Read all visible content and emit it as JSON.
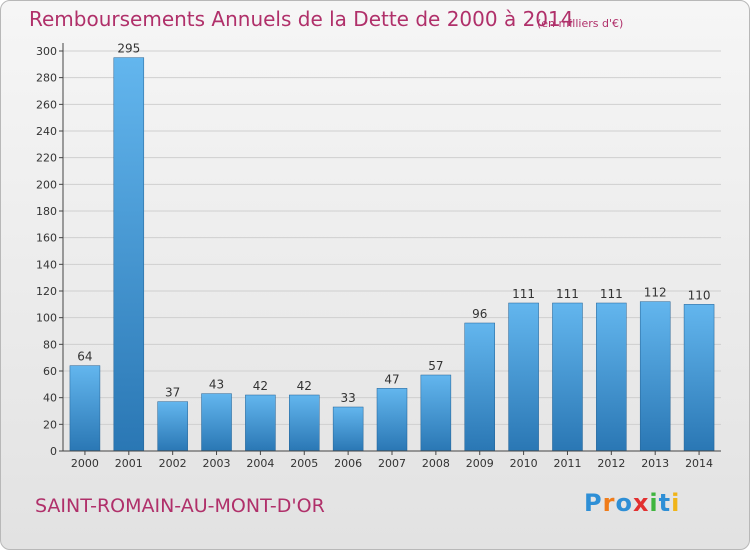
{
  "title": "Remboursements Annuels de la Dette de 2000 à 2014",
  "unit": "(en milliers d'€)",
  "commune": "SAINT-ROMAIN-AU-MONT-D'OR",
  "logo": "Proxiti",
  "colors": {
    "title": "#b0306a",
    "bar_top": "#63b6ee",
    "bar_bottom": "#2a77b4",
    "logo_letters": [
      "#2e8fd6",
      "#f07c1a",
      "#2e8fd6",
      "#e23030",
      "#3fb53f",
      "#2e8fd6",
      "#f0b418"
    ]
  },
  "chart_data": {
    "type": "bar",
    "title": "Remboursements Annuels de la Dette de 2000 à 2014",
    "xlabel": "",
    "ylabel": "",
    "ylim": [
      0,
      300
    ],
    "yticks": [
      0,
      20,
      40,
      60,
      80,
      100,
      120,
      140,
      160,
      180,
      200,
      220,
      240,
      260,
      280,
      300
    ],
    "grid": true,
    "categories": [
      "2000",
      "2001",
      "2002",
      "2003",
      "2004",
      "2005",
      "2006",
      "2007",
      "2008",
      "2009",
      "2010",
      "2011",
      "2012",
      "2013",
      "2014"
    ],
    "values": [
      64,
      295,
      37,
      43,
      42,
      42,
      33,
      47,
      57,
      96,
      111,
      111,
      111,
      112,
      110
    ]
  }
}
